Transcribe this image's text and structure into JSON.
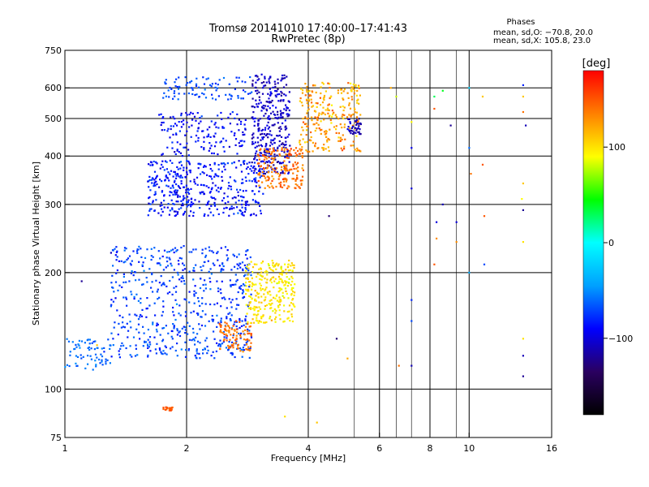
{
  "chart_data": {
    "type": "scatter",
    "title": "Tromsø 20141010 17:40:00–17:41:43",
    "subtitle": "RwPretec (8p)",
    "stats_heading": "Phases",
    "stats_line1": "mean, sd,O: −70.8, 20.0",
    "stats_line2": "mean, sd,X: 105.8, 23.0",
    "xlabel": "Frequency [MHz]",
    "ylabel": "Stationary phase Virtual Height [km]",
    "x_scale": "log",
    "y_scale": "log",
    "xlim": [
      1,
      16
    ],
    "ylim": [
      75,
      750
    ],
    "x_ticks": [
      1,
      2,
      4,
      6,
      8,
      10,
      16
    ],
    "x_tick_labels": [
      "1",
      "2",
      "4",
      "6",
      "8",
      "10",
      "16"
    ],
    "x_grid": [
      2,
      4,
      6,
      8,
      10
    ],
    "x_minor_grid": [
      5.2,
      6.6,
      7.2,
      9.3
    ],
    "y_ticks": [
      75,
      100,
      200,
      300,
      400,
      500,
      600,
      750
    ],
    "y_tick_labels": [
      "75",
      "100",
      "200",
      "300",
      "400",
      "500",
      "600",
      "750"
    ],
    "y_grid": [
      100,
      200,
      300,
      400,
      500,
      600
    ],
    "grid": true,
    "colorbar": {
      "label": "[deg]",
      "range": [
        -180,
        180
      ],
      "ticks": [
        100,
        0,
        -100
      ],
      "tick_labels": [
        "100",
        "0",
        "−100"
      ],
      "colormap": [
        "#000000",
        "#2a0060",
        "#0000ff",
        "#00a0ff",
        "#00ffff",
        "#00ff00",
        "#ffff00",
        "#ff8000",
        "#ff0000"
      ]
    },
    "clusters": [
      {
        "x": [
          1.0,
          1.3
        ],
        "y": [
          112,
          135
        ],
        "n": 70,
        "phase": -60,
        "spread": 12,
        "shape": "E low"
      },
      {
        "x": [
          1.3,
          2.9
        ],
        "y": [
          120,
          235
        ],
        "n": 600,
        "phase": -72,
        "spread": 18,
        "shape": "O F1 cusp"
      },
      {
        "x": [
          2.4,
          2.9
        ],
        "y": [
          125,
          150
        ],
        "n": 90,
        "phase": 140,
        "spread": 15,
        "shape": "X F1 onset"
      },
      {
        "x": [
          2.8,
          3.7
        ],
        "y": [
          148,
          215
        ],
        "n": 280,
        "phase": 100,
        "spread": 18,
        "shape": "X F1 cusp"
      },
      {
        "x": [
          1.6,
          3.1
        ],
        "y": [
          280,
          390
        ],
        "n": 420,
        "phase": -85,
        "spread": 20,
        "shape": "O F2 lower"
      },
      {
        "x": [
          1.7,
          2.8
        ],
        "y": [
          400,
          520
        ],
        "n": 150,
        "phase": -90,
        "spread": 18,
        "shape": "O F2 mid"
      },
      {
        "x": [
          1.75,
          2.9
        ],
        "y": [
          560,
          640
        ],
        "n": 90,
        "phase": -70,
        "spread": 12,
        "shape": "O F2 upper trace"
      },
      {
        "x": [
          2.9,
          3.6
        ],
        "y": [
          360,
          650
        ],
        "n": 340,
        "phase": -105,
        "spread": 20,
        "shape": "O F2 cusp"
      },
      {
        "x": [
          3.0,
          3.9
        ],
        "y": [
          330,
          420
        ],
        "n": 180,
        "phase": 140,
        "spread": 20,
        "shape": "X F2 lower"
      },
      {
        "x": [
          3.8,
          5.4
        ],
        "y": [
          410,
          620
        ],
        "n": 260,
        "phase": 125,
        "spread": 28,
        "shape": "X F2 cusp"
      },
      {
        "x": [
          5.0,
          5.4
        ],
        "y": [
          450,
          500
        ],
        "n": 40,
        "phase": -110,
        "spread": 15,
        "shape": "O F2 tail"
      },
      {
        "x": [
          1.75,
          1.85
        ],
        "y": [
          88,
          90
        ],
        "n": 20,
        "phase": 150,
        "spread": 8,
        "shape": "sporadic low"
      }
    ],
    "isolated_points": [
      {
        "x": 4.5,
        "y": 280,
        "phase": -130
      },
      {
        "x": 4.7,
        "y": 135,
        "phase": -130
      },
      {
        "x": 5.0,
        "y": 120,
        "phase": 120
      },
      {
        "x": 4.2,
        "y": 82,
        "phase": 110
      },
      {
        "x": 6.7,
        "y": 115,
        "phase": 140
      },
      {
        "x": 6.4,
        "y": 600,
        "phase": 120
      },
      {
        "x": 6.6,
        "y": 570,
        "phase": 80
      },
      {
        "x": 7.2,
        "y": 170,
        "phase": -80
      },
      {
        "x": 7.2,
        "y": 150,
        "phase": -70
      },
      {
        "x": 7.2,
        "y": 330,
        "phase": -100
      },
      {
        "x": 7.2,
        "y": 420,
        "phase": -95
      },
      {
        "x": 7.2,
        "y": 490,
        "phase": 90
      },
      {
        "x": 7.2,
        "y": 115,
        "phase": -110
      },
      {
        "x": 8.2,
        "y": 570,
        "phase": 30
      },
      {
        "x": 8.2,
        "y": 530,
        "phase": 150
      },
      {
        "x": 8.3,
        "y": 270,
        "phase": -100
      },
      {
        "x": 8.2,
        "y": 210,
        "phase": 150
      },
      {
        "x": 8.3,
        "y": 245,
        "phase": 130
      },
      {
        "x": 8.6,
        "y": 300,
        "phase": -110
      },
      {
        "x": 8.6,
        "y": 590,
        "phase": 40
      },
      {
        "x": 9.0,
        "y": 480,
        "phase": -120
      },
      {
        "x": 9.3,
        "y": 270,
        "phase": -100
      },
      {
        "x": 9.3,
        "y": 240,
        "phase": 130
      },
      {
        "x": 10.0,
        "y": 420,
        "phase": -60
      },
      {
        "x": 10.1,
        "y": 360,
        "phase": 140
      },
      {
        "x": 10.0,
        "y": 200,
        "phase": -40
      },
      {
        "x": 10.0,
        "y": 600,
        "phase": -20
      },
      {
        "x": 10.8,
        "y": 380,
        "phase": 150
      },
      {
        "x": 10.9,
        "y": 280,
        "phase": 150
      },
      {
        "x": 10.8,
        "y": 570,
        "phase": 110
      },
      {
        "x": 10.9,
        "y": 210,
        "phase": -70
      },
      {
        "x": 13.6,
        "y": 610,
        "phase": -80
      },
      {
        "x": 13.6,
        "y": 570,
        "phase": 110
      },
      {
        "x": 13.6,
        "y": 520,
        "phase": 140
      },
      {
        "x": 13.8,
        "y": 480,
        "phase": -110
      },
      {
        "x": 13.6,
        "y": 340,
        "phase": 110
      },
      {
        "x": 13.5,
        "y": 310,
        "phase": 90
      },
      {
        "x": 13.6,
        "y": 290,
        "phase": -120
      },
      {
        "x": 13.6,
        "y": 240,
        "phase": 100
      },
      {
        "x": 13.6,
        "y": 135,
        "phase": 100
      },
      {
        "x": 13.6,
        "y": 122,
        "phase": -110
      },
      {
        "x": 13.6,
        "y": 108,
        "phase": -120
      },
      {
        "x": 1.3,
        "y": 225,
        "phase": -110
      },
      {
        "x": 1.1,
        "y": 190,
        "phase": -120
      },
      {
        "x": 1.2,
        "y": 130,
        "phase": 110
      },
      {
        "x": 1.25,
        "y": 125,
        "phase": -80
      },
      {
        "x": 1.9,
        "y": 200,
        "phase": -70
      },
      {
        "x": 3.5,
        "y": 85,
        "phase": 100
      }
    ]
  }
}
